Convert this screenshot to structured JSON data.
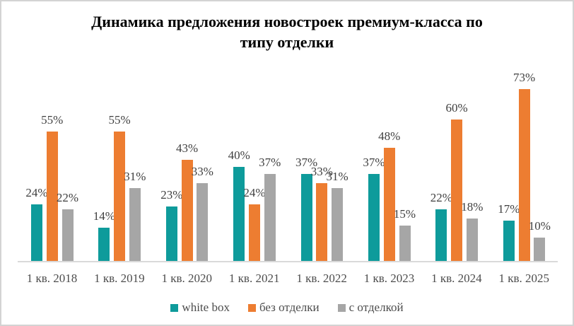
{
  "title_lines": [
    "Динамика предложения новостроек премиум-класса по",
    "типу отделки"
  ],
  "chart_data": {
    "type": "bar",
    "title": "Динамика предложения новостроек премиум-класса по типу отделки",
    "categories": [
      "1 кв. 2018",
      "1 кв. 2019",
      "1 кв. 2020",
      "1 кв. 2021",
      "1 кв. 2022",
      "1 кв. 2023",
      "1 кв. 2024",
      "1 кв. 2025"
    ],
    "series": [
      {
        "name": "white box",
        "color": "#0E9B9B",
        "values": [
          24,
          14,
          23,
          40,
          37,
          37,
          22,
          17
        ]
      },
      {
        "name": "без отделки",
        "color": "#ED7D31",
        "values": [
          55,
          55,
          43,
          24,
          33,
          48,
          60,
          73
        ]
      },
      {
        "name": "с отделкой",
        "color": "#A6A6A6",
        "values": [
          22,
          31,
          33,
          37,
          31,
          15,
          18,
          10
        ]
      }
    ],
    "value_suffix": "%",
    "data_labels": "outside-end",
    "legend_position": "bottom",
    "ylim": [
      0,
      80
    ],
    "y_axis_visible": false,
    "gridlines": false
  },
  "colors": {
    "data_label": "#404040",
    "axis_label": "#4D4D4D",
    "axis_line": "#D9D9D9",
    "frame_border": "#D3D3D3",
    "background": "#FFFFFF",
    "title": "#000000"
  }
}
